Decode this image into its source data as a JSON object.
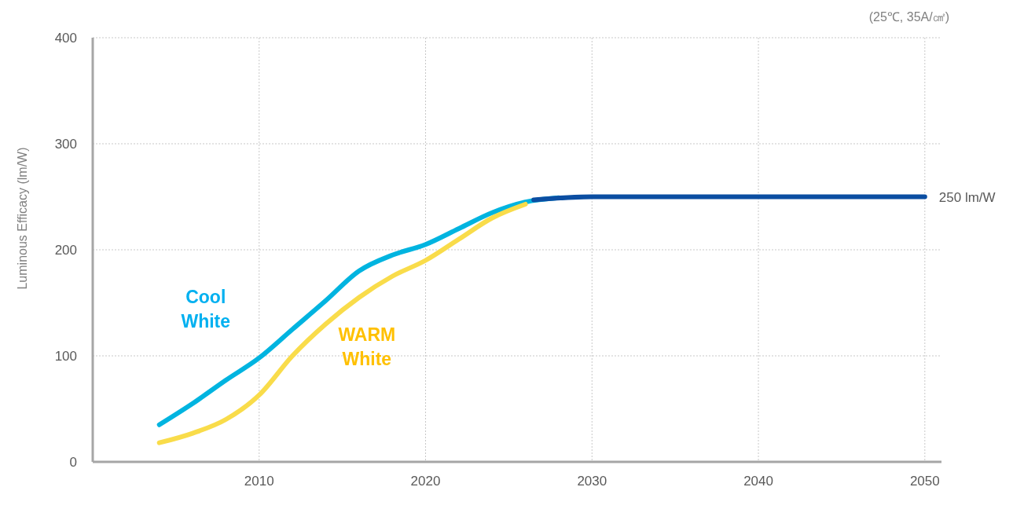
{
  "chart_data": {
    "type": "line",
    "ylabel": "Luminous Efficacy (lm/W)",
    "annotations": [
      "(25℃, 35A/㎠)",
      {
        "text": "250 lm/W",
        "x": 2050,
        "y": 250
      }
    ],
    "xlim": [
      2000,
      2051
    ],
    "xticks": [
      2010,
      2020,
      2030,
      2040,
      2050
    ],
    "ylim": [
      0,
      400
    ],
    "yticks": [
      0,
      100,
      200,
      300,
      400
    ],
    "grid": true,
    "series": [
      {
        "name": "Cool White",
        "color": "#00b4e0",
        "x": [
          2004,
          2006,
          2008,
          2010,
          2012,
          2014,
          2016,
          2018,
          2020,
          2022,
          2024,
          2026,
          2028
        ],
        "values": [
          35,
          55,
          77,
          98,
          125,
          152,
          180,
          195,
          205,
          220,
          235,
          245,
          249
        ]
      },
      {
        "name": "WARM White",
        "color": "#f9dc4a",
        "x": [
          2004,
          2006,
          2008,
          2010,
          2012,
          2014,
          2016,
          2018,
          2020,
          2022,
          2024,
          2026
        ],
        "values": [
          18,
          27,
          40,
          63,
          100,
          130,
          155,
          175,
          190,
          210,
          230,
          243
        ]
      },
      {
        "color": "#0b4ea2",
        "x": [
          2026.5,
          2030,
          2040,
          2050
        ],
        "values": [
          247,
          250,
          250,
          250
        ]
      }
    ]
  }
}
